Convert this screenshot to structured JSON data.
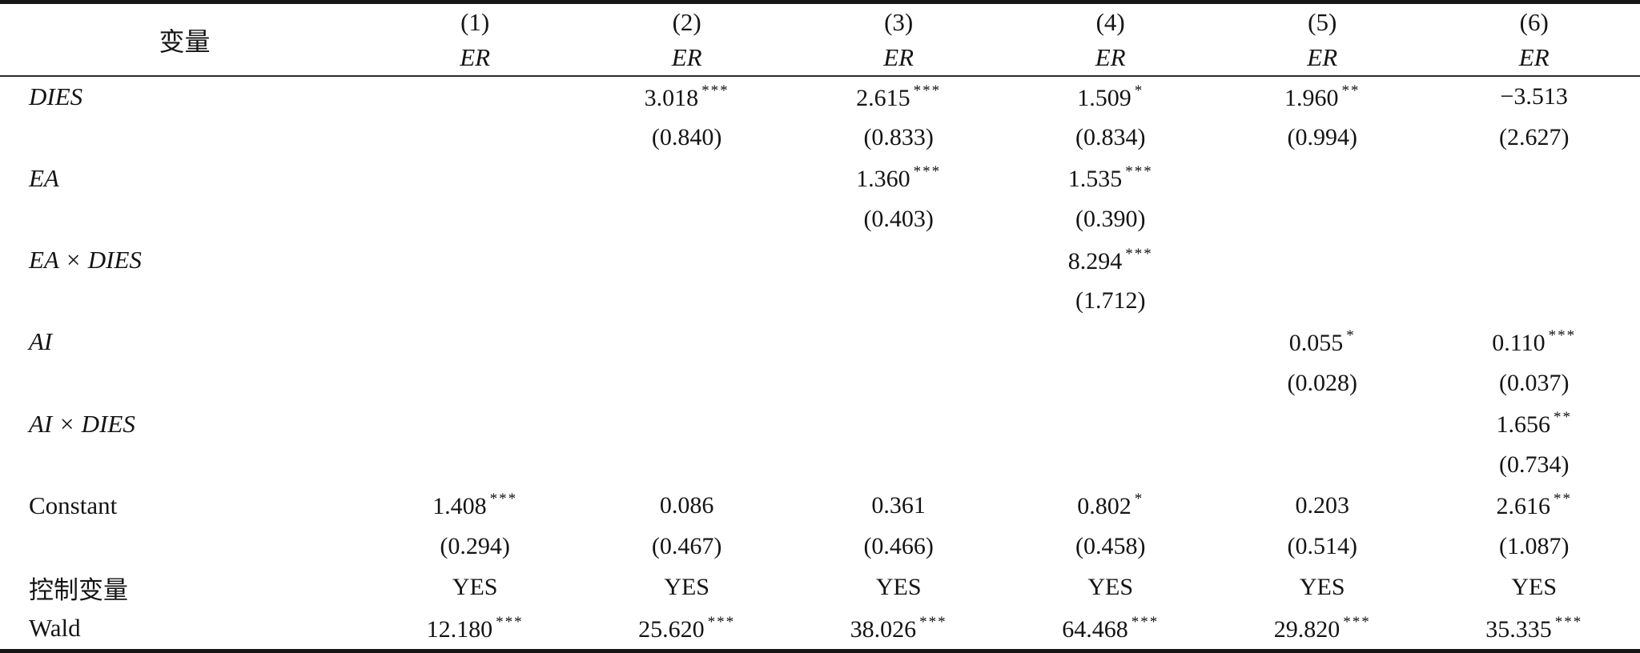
{
  "table": {
    "header": {
      "variable_label": "变量",
      "columns": [
        {
          "number": "(1)",
          "dv": "ER"
        },
        {
          "number": "(2)",
          "dv": "ER"
        },
        {
          "number": "(3)",
          "dv": "ER"
        },
        {
          "number": "(4)",
          "dv": "ER"
        },
        {
          "number": "(5)",
          "dv": "ER"
        },
        {
          "number": "(6)",
          "dv": "ER"
        }
      ]
    },
    "rows": [
      {
        "label": "DIES",
        "italic": true,
        "cells": [
          {
            "v": "",
            "s": ""
          },
          {
            "v": "3.018",
            "s": "***"
          },
          {
            "v": "2.615",
            "s": "***"
          },
          {
            "v": "1.509",
            "s": "*"
          },
          {
            "v": "1.960",
            "s": "**"
          },
          {
            "v": "−3.513",
            "s": ""
          }
        ]
      },
      {
        "label": "",
        "italic": false,
        "cells": [
          {
            "v": "",
            "s": ""
          },
          {
            "v": "(0.840)",
            "s": ""
          },
          {
            "v": "(0.833)",
            "s": ""
          },
          {
            "v": "(0.834)",
            "s": ""
          },
          {
            "v": "(0.994)",
            "s": ""
          },
          {
            "v": "(2.627)",
            "s": ""
          }
        ]
      },
      {
        "label": "EA",
        "italic": true,
        "cells": [
          {
            "v": "",
            "s": ""
          },
          {
            "v": "",
            "s": ""
          },
          {
            "v": "1.360",
            "s": "***"
          },
          {
            "v": "1.535",
            "s": "***"
          },
          {
            "v": "",
            "s": ""
          },
          {
            "v": "",
            "s": ""
          }
        ]
      },
      {
        "label": "",
        "italic": false,
        "cells": [
          {
            "v": "",
            "s": ""
          },
          {
            "v": "",
            "s": ""
          },
          {
            "v": "(0.403)",
            "s": ""
          },
          {
            "v": "(0.390)",
            "s": ""
          },
          {
            "v": "",
            "s": ""
          },
          {
            "v": "",
            "s": ""
          }
        ]
      },
      {
        "label": "EA × DIES",
        "italic": true,
        "cells": [
          {
            "v": "",
            "s": ""
          },
          {
            "v": "",
            "s": ""
          },
          {
            "v": "",
            "s": ""
          },
          {
            "v": "8.294",
            "s": "***"
          },
          {
            "v": "",
            "s": ""
          },
          {
            "v": "",
            "s": ""
          }
        ]
      },
      {
        "label": "",
        "italic": false,
        "cells": [
          {
            "v": "",
            "s": ""
          },
          {
            "v": "",
            "s": ""
          },
          {
            "v": "",
            "s": ""
          },
          {
            "v": "(1.712)",
            "s": ""
          },
          {
            "v": "",
            "s": ""
          },
          {
            "v": "",
            "s": ""
          }
        ]
      },
      {
        "label": "AI",
        "italic": true,
        "cells": [
          {
            "v": "",
            "s": ""
          },
          {
            "v": "",
            "s": ""
          },
          {
            "v": "",
            "s": ""
          },
          {
            "v": "",
            "s": ""
          },
          {
            "v": "0.055",
            "s": "*"
          },
          {
            "v": "0.110",
            "s": "***"
          }
        ]
      },
      {
        "label": "",
        "italic": false,
        "cells": [
          {
            "v": "",
            "s": ""
          },
          {
            "v": "",
            "s": ""
          },
          {
            "v": "",
            "s": ""
          },
          {
            "v": "",
            "s": ""
          },
          {
            "v": "(0.028)",
            "s": ""
          },
          {
            "v": "(0.037)",
            "s": ""
          }
        ]
      },
      {
        "label": "AI × DIES",
        "italic": true,
        "cells": [
          {
            "v": "",
            "s": ""
          },
          {
            "v": "",
            "s": ""
          },
          {
            "v": "",
            "s": ""
          },
          {
            "v": "",
            "s": ""
          },
          {
            "v": "",
            "s": ""
          },
          {
            "v": "1.656",
            "s": "**"
          }
        ]
      },
      {
        "label": "",
        "italic": false,
        "cells": [
          {
            "v": "",
            "s": ""
          },
          {
            "v": "",
            "s": ""
          },
          {
            "v": "",
            "s": ""
          },
          {
            "v": "",
            "s": ""
          },
          {
            "v": "",
            "s": ""
          },
          {
            "v": "(0.734)",
            "s": ""
          }
        ]
      },
      {
        "label": "Constant",
        "italic": false,
        "cells": [
          {
            "v": "1.408",
            "s": "***"
          },
          {
            "v": "0.086",
            "s": ""
          },
          {
            "v": "0.361",
            "s": ""
          },
          {
            "v": "0.802",
            "s": "*"
          },
          {
            "v": "0.203",
            "s": ""
          },
          {
            "v": "2.616",
            "s": "**"
          }
        ]
      },
      {
        "label": "",
        "italic": false,
        "cells": [
          {
            "v": "(0.294)",
            "s": ""
          },
          {
            "v": "(0.467)",
            "s": ""
          },
          {
            "v": "(0.466)",
            "s": ""
          },
          {
            "v": "(0.458)",
            "s": ""
          },
          {
            "v": "(0.514)",
            "s": ""
          },
          {
            "v": "(1.087)",
            "s": ""
          }
        ]
      },
      {
        "label": "控制变量",
        "italic": false,
        "cells": [
          {
            "v": "YES",
            "s": ""
          },
          {
            "v": "YES",
            "s": ""
          },
          {
            "v": "YES",
            "s": ""
          },
          {
            "v": "YES",
            "s": ""
          },
          {
            "v": "YES",
            "s": ""
          },
          {
            "v": "YES",
            "s": ""
          }
        ]
      },
      {
        "label": "Wald",
        "italic": false,
        "cells": [
          {
            "v": "12.180",
            "s": "***"
          },
          {
            "v": "25.620",
            "s": "***"
          },
          {
            "v": "38.026",
            "s": "***"
          },
          {
            "v": "64.468",
            "s": "***"
          },
          {
            "v": "29.820",
            "s": "***"
          },
          {
            "v": "35.335",
            "s": "***"
          }
        ]
      }
    ]
  },
  "colors": {
    "text": "#141414",
    "border": "#161616",
    "background": "#ffffff"
  }
}
